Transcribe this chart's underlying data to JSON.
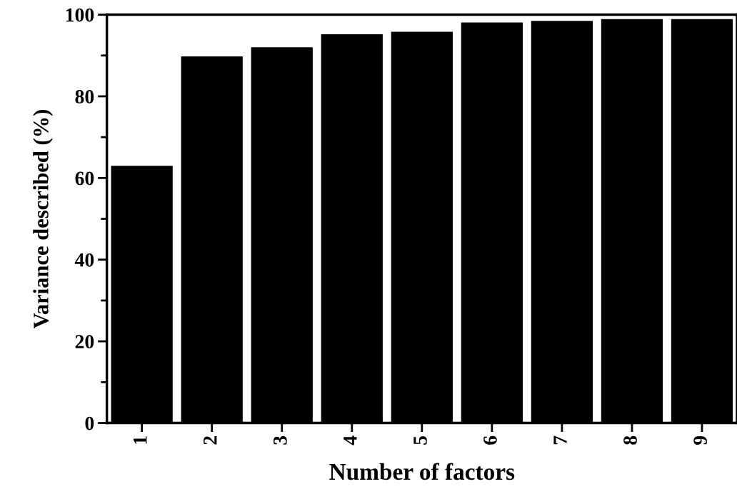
{
  "chart_data": {
    "type": "bar",
    "xlabel": "Number of factors",
    "ylabel": "Variance described (%)",
    "categories": [
      "1",
      "2",
      "3",
      "4",
      "5",
      "6",
      "7",
      "8",
      "9"
    ],
    "values": [
      63.0,
      89.8,
      92.0,
      95.2,
      95.8,
      98.1,
      98.5,
      98.9,
      98.9
    ],
    "color": "#000000",
    "ylim": [
      0,
      100
    ],
    "yticks": [
      0,
      20,
      40,
      60,
      80,
      100
    ],
    "grid": false,
    "legend": false
  }
}
